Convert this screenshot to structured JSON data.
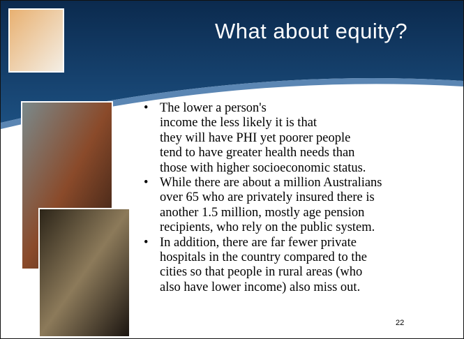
{
  "slide": {
    "title": "What about equity?",
    "bullets": [
      [
        "The lower a person's",
        "income the less likely it is that",
        "they will have PHI yet poorer people",
        "tend to have greater health needs than",
        "those with higher socioeconomic status."
      ],
      [
        "While there are about a million Australians",
        "over 65 who are privately insured there is",
        "another 1.5 million, mostly age pension",
        "recipients, who rely on the public system."
      ],
      [
        "In addition, there are far fewer private",
        "hospitals in the country compared to the",
        "cities so that people in rural areas (who",
        "also have lower income) also miss out."
      ]
    ],
    "page_number": "22"
  }
}
